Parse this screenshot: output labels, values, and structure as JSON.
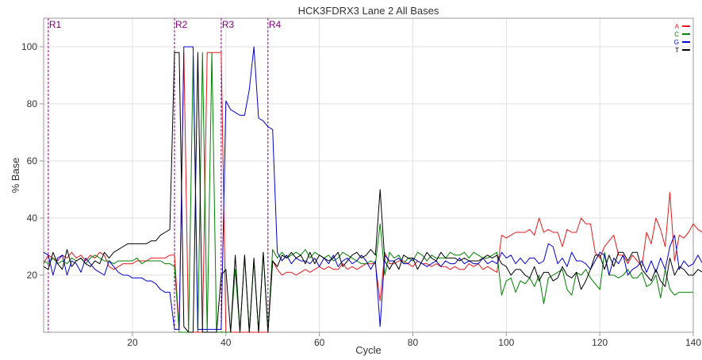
{
  "chart_data": {
    "type": "line",
    "title": "HCK3FDRX3 Lane 2 All Bases",
    "xlabel": "Cycle",
    "ylabel": "% Base",
    "xlim": [
      1,
      140
    ],
    "ylim": [
      0,
      110
    ],
    "xticks": [
      20,
      40,
      60,
      80,
      100,
      120,
      140
    ],
    "yticks": [
      20,
      40,
      60,
      80,
      100
    ],
    "grid": true,
    "legend_position": "top-right",
    "read_markers": [
      {
        "label": "R1",
        "x": 2
      },
      {
        "label": "R2",
        "x": 29
      },
      {
        "label": "R3",
        "x": 39
      },
      {
        "label": "R4",
        "x": 49
      }
    ],
    "series": [
      {
        "name": "A",
        "color": "#e41a1c",
        "values": [
          24,
          27,
          26,
          25,
          27,
          26,
          28,
          26,
          27,
          25,
          27,
          26,
          28,
          27,
          23,
          22,
          23,
          24,
          24,
          24,
          25,
          25,
          25,
          26,
          26,
          26,
          26,
          27,
          27,
          1,
          98,
          0,
          0,
          0,
          0,
          98,
          98,
          98,
          98,
          0,
          0,
          0,
          0,
          0,
          0,
          0,
          0,
          0,
          0,
          25,
          22,
          20,
          21,
          21,
          20,
          21,
          22,
          21,
          22,
          23,
          22,
          23,
          22,
          22,
          24,
          22,
          23,
          22,
          23,
          24,
          24,
          24,
          11,
          28,
          24,
          24,
          25,
          25,
          24,
          23,
          25,
          24,
          24,
          23,
          24,
          23,
          23,
          22,
          23,
          22,
          22,
          24,
          23,
          24,
          22,
          23,
          22,
          21,
          34,
          33,
          34,
          35,
          35,
          35,
          36,
          34,
          40,
          35,
          36,
          35,
          35,
          30,
          36,
          35,
          35,
          40,
          38,
          38,
          28,
          26,
          30,
          32,
          34,
          27,
          27,
          24,
          27,
          25,
          23,
          35,
          31,
          40,
          36,
          30,
          49,
          25,
          34,
          33,
          35,
          38,
          36,
          35
        ]
      },
      {
        "name": "C",
        "color": "#008000",
        "values": [
          25,
          24,
          26,
          24,
          25,
          24,
          26,
          25,
          26,
          24,
          26,
          27,
          26,
          25,
          25,
          24,
          25,
          25,
          25,
          25,
          26,
          24,
          25,
          25,
          25,
          25,
          24,
          24,
          23,
          0,
          0,
          0,
          97,
          0,
          98,
          0,
          98,
          0,
          0,
          0,
          0,
          22,
          0,
          27,
          0,
          25,
          0,
          28,
          0,
          29,
          26,
          28,
          26,
          27,
          28,
          27,
          29,
          26,
          28,
          27,
          26,
          27,
          25,
          26,
          28,
          27,
          26,
          25,
          24,
          24,
          25,
          24,
          38,
          20,
          28,
          26,
          27,
          24,
          26,
          25,
          28,
          27,
          25,
          27,
          26,
          26,
          26,
          28,
          27,
          27,
          28,
          26,
          28,
          27,
          26,
          26,
          27,
          28,
          13,
          18,
          19,
          14,
          18,
          17,
          19,
          16,
          20,
          10,
          19,
          20,
          21,
          22,
          15,
          13,
          21,
          20,
          22,
          19,
          17,
          15,
          28,
          20,
          20,
          19,
          20,
          22,
          19,
          19,
          21,
          16,
          17,
          20,
          12,
          22,
          15,
          13,
          14,
          14,
          14,
          14
        ]
      },
      {
        "name": "G",
        "color": "#0000cd",
        "values": [
          28,
          27,
          20,
          26,
          27,
          20,
          25,
          24,
          21,
          26,
          24,
          22,
          21,
          20,
          25,
          23,
          21,
          20,
          20,
          19,
          19,
          19,
          18,
          18,
          17,
          15,
          14,
          14,
          1,
          1,
          100,
          100,
          100,
          1,
          1,
          1,
          1,
          1,
          1,
          81,
          78,
          77,
          76,
          76,
          85,
          100,
          75,
          74,
          72,
          71,
          28,
          25,
          27,
          24,
          26,
          25,
          25,
          24,
          26,
          23,
          26,
          24,
          27,
          23,
          25,
          26,
          24,
          25,
          27,
          25,
          22,
          25,
          2,
          27,
          25,
          25,
          26,
          24,
          24,
          26,
          25,
          24,
          23,
          24,
          25,
          23,
          25,
          24,
          24,
          26,
          24,
          25,
          24,
          24,
          26,
          24,
          25,
          24,
          28,
          26,
          27,
          24,
          26,
          24,
          26,
          26,
          24,
          25,
          31,
          30,
          24,
          26,
          23,
          28,
          25,
          25,
          24,
          22,
          25,
          28,
          27,
          20,
          26,
          24,
          27,
          20,
          22,
          23,
          25,
          21,
          25,
          21,
          26,
          22,
          30,
          34,
          22,
          25,
          23,
          24,
          27,
          24
        ]
      },
      {
        "name": "T",
        "color": "#000000",
        "values": [
          23,
          22,
          28,
          24,
          22,
          29,
          23,
          25,
          26,
          24,
          23,
          25,
          24,
          28,
          26,
          28,
          29,
          30,
          31,
          31,
          31,
          31,
          31,
          32,
          32,
          34,
          35,
          36,
          98,
          98,
          2,
          0,
          0,
          98,
          0,
          0,
          0,
          0,
          20,
          22,
          0,
          27,
          0,
          27,
          0,
          26,
          0,
          28,
          0,
          25,
          23,
          27,
          26,
          28,
          26,
          27,
          24,
          28,
          24,
          27,
          26,
          25,
          26,
          28,
          23,
          25,
          27,
          28,
          26,
          27,
          29,
          27,
          50,
          25,
          22,
          25,
          22,
          27,
          26,
          26,
          22,
          25,
          28,
          26,
          25,
          28,
          26,
          26,
          26,
          25,
          26,
          25,
          25,
          25,
          26,
          27,
          26,
          27,
          24,
          23,
          20,
          22,
          22,
          20,
          19,
          23,
          18,
          21,
          21,
          18,
          19,
          23,
          20,
          19,
          21,
          15,
          18,
          22,
          27,
          27,
          22,
          27,
          23,
          28,
          28,
          25,
          28,
          28,
          22,
          20,
          18,
          22,
          18,
          16,
          26,
          20,
          23,
          22,
          20,
          20,
          22,
          21
        ]
      }
    ]
  }
}
